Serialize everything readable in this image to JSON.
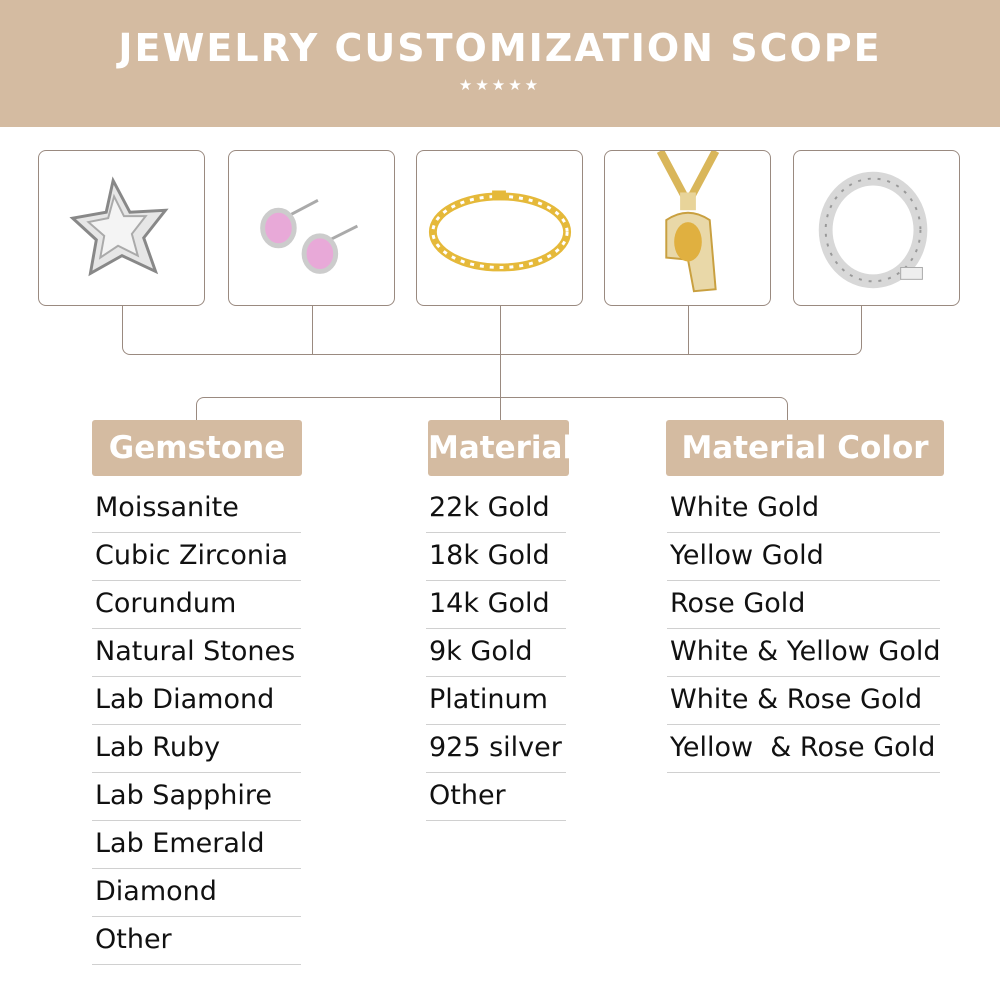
{
  "header": {
    "title": "JEWELRY CUSTOMIZATION SCOPE",
    "stars": "★★★★★"
  },
  "products": [
    {
      "name": "star-pendant",
      "icon": "star-pendant-image"
    },
    {
      "name": "pink-stud-earrings",
      "icon": "earrings-image"
    },
    {
      "name": "gold-tennis-bracelet",
      "icon": "bracelet-image"
    },
    {
      "name": "jesus-pendant",
      "icon": "pendant-image"
    },
    {
      "name": "silver-cuban-chain",
      "icon": "chain-image"
    }
  ],
  "categories": {
    "gemstone": {
      "label": "Gemstone",
      "items": [
        "Moissanite",
        "Cubic Zirconia",
        "Corundum",
        "Natural Stones",
        "Lab Diamond",
        "Lab Ruby",
        "Lab Sapphire",
        "Lab Emerald",
        "Diamond",
        "Other"
      ]
    },
    "material": {
      "label": "Material",
      "items": [
        "22k Gold",
        "18k Gold",
        "14k Gold",
        "9k Gold",
        "Platinum",
        "925 silver",
        "Other"
      ]
    },
    "material_color": {
      "label": "Material Color",
      "items": [
        "White Gold",
        "Yellow Gold",
        "Rose Gold",
        "White & Yellow Gold",
        "White & Rose Gold",
        "Yellow  & Rose Gold"
      ]
    }
  },
  "colors": {
    "accent": "#d4bba1",
    "line": "#9a8a80",
    "text": "#111111"
  }
}
